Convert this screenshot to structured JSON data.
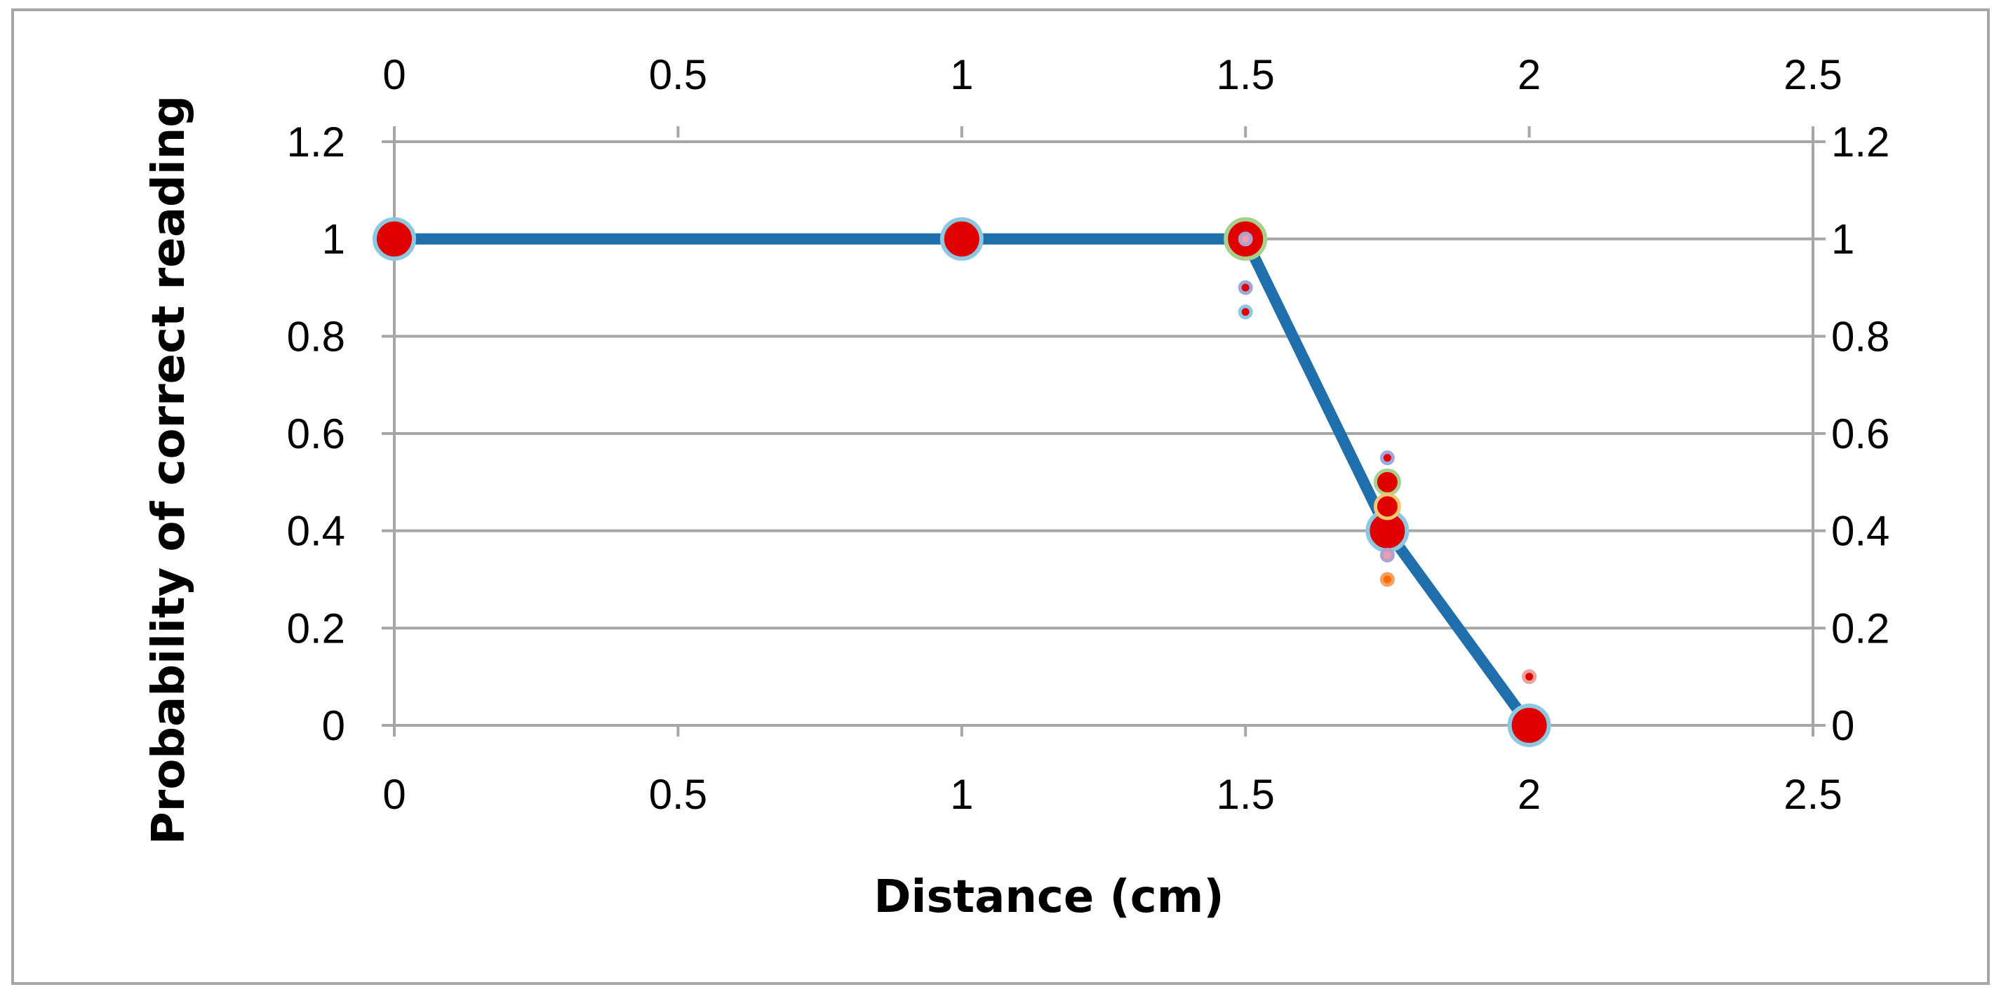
{
  "chart_data": {
    "type": "scatter",
    "title": "",
    "xlabel": "Distance (cm)",
    "ylabel": "Probability of correct reading",
    "xlim": [
      0,
      2.5
    ],
    "ylim": [
      0,
      1.2
    ],
    "x_ticks": [
      "0",
      "0.5",
      "1",
      "1.5",
      "2",
      "2.5"
    ],
    "y_ticks": [
      "0",
      "0.2",
      "0.4",
      "0.6",
      "0.8",
      "1",
      "1.2"
    ],
    "secondary_axes": true,
    "grid": "horizontal",
    "legend": "none",
    "line_series": {
      "x": [
        0,
        1,
        1.5,
        1.75,
        2
      ],
      "y": [
        1,
        1,
        1,
        0.4,
        0
      ],
      "color": "#1f6fad"
    },
    "scatter_points": [
      {
        "x": 0,
        "y": 1,
        "size": "large",
        "fill": "#e00000",
        "ring": "#8ec8e0"
      },
      {
        "x": 1,
        "y": 1,
        "size": "large",
        "fill": "#e00000",
        "ring": "#8ec8e0"
      },
      {
        "x": 1.5,
        "y": 1,
        "size": "large",
        "fill": "#e00000",
        "ring": "#a8d08d"
      },
      {
        "x": 1.5,
        "y": 1,
        "size": "small",
        "fill": "#e8a0b0",
        "ring": "#b0a0d0"
      },
      {
        "x": 1.5,
        "y": 0.9,
        "size": "small",
        "fill": "#e00000",
        "ring": "#9fa8da"
      },
      {
        "x": 1.5,
        "y": 0.85,
        "size": "small",
        "fill": "#e00000",
        "ring": "#8ec8e0"
      },
      {
        "x": 1.75,
        "y": 0.55,
        "size": "small",
        "fill": "#e00000",
        "ring": "#9fa8da"
      },
      {
        "x": 1.75,
        "y": 0.5,
        "size": "medium",
        "fill": "#e00000",
        "ring": "#a8d08d"
      },
      {
        "x": 1.75,
        "y": 0.45,
        "size": "medium",
        "fill": "#e00000",
        "ring": "#f4c870"
      },
      {
        "x": 1.75,
        "y": 0.4,
        "size": "large",
        "fill": "#e00000",
        "ring": "#8ec8e0"
      },
      {
        "x": 1.75,
        "y": 0.35,
        "size": "small",
        "fill": "#e8a0b0",
        "ring": "#b0a0d0"
      },
      {
        "x": 1.75,
        "y": 0.3,
        "size": "small",
        "fill": "#ff6a00",
        "ring": "#f4a060"
      },
      {
        "x": 2,
        "y": 0,
        "size": "large",
        "fill": "#e00000",
        "ring": "#8ec8e0"
      },
      {
        "x": 2,
        "y": 0.1,
        "size": "small",
        "fill": "#e00000",
        "ring": "#f0a0a0"
      }
    ]
  }
}
